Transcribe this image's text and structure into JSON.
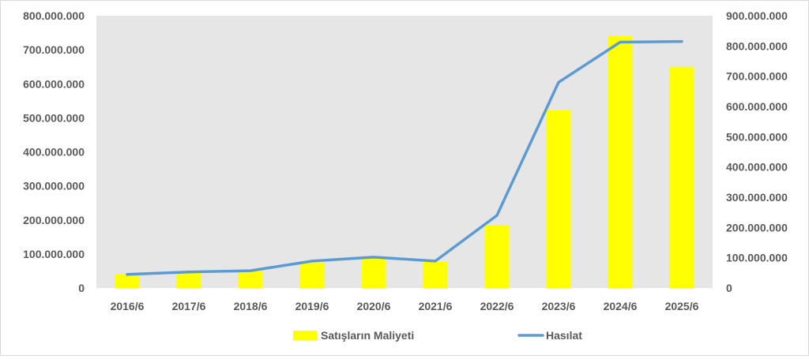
{
  "chart_data": {
    "type": "bar",
    "categories": [
      "2016/6",
      "2017/6",
      "2018/6",
      "2019/6",
      "2020/6",
      "2021/6",
      "2022/6",
      "2023/6",
      "2024/6",
      "2025/6"
    ],
    "series": [
      {
        "name": "Satışların Maliyeti",
        "type": "bar",
        "axis": "left",
        "color": "#ffff00",
        "values": [
          40000000,
          48000000,
          52000000,
          75000000,
          88000000,
          77000000,
          185000000,
          523000000,
          742000000,
          650000000
        ]
      },
      {
        "name": "Hasılat",
        "type": "line",
        "axis": "right",
        "color": "#5b9bd5",
        "values": [
          45000000,
          53000000,
          57000000,
          89000000,
          102000000,
          89000000,
          240000000,
          680000000,
          813000000,
          815000000
        ]
      }
    ],
    "y_left": {
      "ylim": [
        0,
        800000000
      ],
      "ticks": [
        "0",
        "100.000.000",
        "200.000.000",
        "300.000.000",
        "400.000.000",
        "500.000.000",
        "600.000.000",
        "700.000.000",
        "800.000.000"
      ]
    },
    "y_right": {
      "ylim": [
        0,
        900000000
      ],
      "ticks": [
        "0",
        "100.000.000",
        "200.000.000",
        "300.000.000",
        "400.000.000",
        "500.000.000",
        "600.000.000",
        "700.000.000",
        "800.000.000",
        "900.000.000"
      ]
    },
    "grid": false,
    "plot_background": "#e7e6e6",
    "legend": {
      "position": "bottom"
    }
  }
}
